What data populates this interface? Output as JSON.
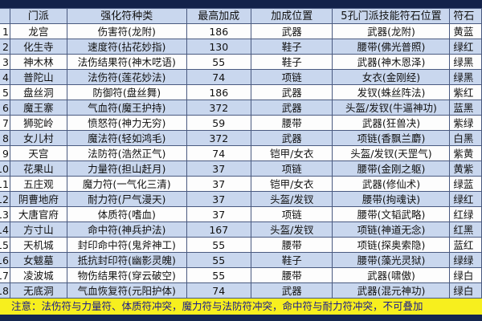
{
  "headers": [
    "",
    "门派",
    "强化符种类",
    "最高加成",
    "加成位置",
    "5孔门派技能符石位置",
    "符石"
  ],
  "rows": [
    [
      "1",
      "龙宫",
      "伤害符(龙附)",
      "186",
      "武器",
      "武器(龙附)",
      "黄蓝"
    ],
    [
      "2",
      "化生寺",
      "速度符(拈花妙指)",
      "130",
      "鞋子",
      "腰带(佛光普照)",
      "绿红"
    ],
    [
      "3",
      "神木林",
      "法伤结果符(神木呓语)",
      "55",
      "鞋子",
      "武器(神木恩泽)",
      "绿黑"
    ],
    [
      "4",
      "普陀山",
      "法伤符(莲花妙法)",
      "74",
      "项链",
      "女衣(金刚经)",
      "绿黑"
    ],
    [
      "5",
      "盘丝洞",
      "防御符(盘丝舞)",
      "186",
      "武器",
      "发钗(蛛丝阵法)",
      "紫红"
    ],
    [
      "6",
      "魔王寨",
      "气血符(魔王护持)",
      "372",
      "武器",
      "头盔/发钗(牛逼神功)",
      "蓝黑"
    ],
    [
      "7",
      "狮驼岭",
      "愤怒符(神力无穷)",
      "59",
      "腰带",
      "武器(狂兽决)",
      "紫绿"
    ],
    [
      "8",
      "女儿村",
      "魔法符(轻如鸿毛)",
      "372",
      "武器",
      "项链(香飘兰麝)",
      "白黑"
    ],
    [
      "9",
      "天宫",
      "法防符(浩然正气)",
      "74",
      "铠甲/女衣",
      "头盔/发钗(天罡气)",
      "紫黄"
    ],
    [
      "10",
      "花果山",
      "力量符(担山赶月)",
      "37",
      "项链",
      "腰带(金刚之躯)",
      "黄紫"
    ],
    [
      "11",
      "五庄观",
      "魔力符(一气化三清)",
      "37",
      "铠甲/女衣",
      "武器(修仙术)",
      "绿蓝"
    ],
    [
      "12",
      "阴曹地府",
      "耐力符(尸气漫天)",
      "37",
      "头盔/发钗",
      "腰带(拘魂诀)",
      "绿红"
    ],
    [
      "13",
      "大唐官府",
      "体质符(嗜血)",
      "37",
      "项链",
      "腰带(文韬武略)",
      "红绿"
    ],
    [
      "14",
      "方寸山",
      "命中符(神兵护法)",
      "167",
      "头盔/发钗",
      "项链(神道无念)",
      "红黑"
    ],
    [
      "15",
      "天机城",
      "封印命中符(鬼斧神工)",
      "55",
      "腰带",
      "项链(探奥索隐)",
      "蓝红"
    ],
    [
      "16",
      "女魃墓",
      "抵抗封印符(幽影灵魄)",
      "55",
      "鞋子",
      "腰带(藻光灵狱)",
      "绿绿"
    ],
    [
      "17",
      "凌波城",
      "物伤结果符(穿云破空)",
      "55",
      "腰带",
      "武器(啸傲)",
      "绿白"
    ],
    [
      "18",
      "无底洞",
      "气血恢复符(元阳护体)",
      "74",
      "武器",
      "武器(混元神功)",
      "绿白"
    ]
  ],
  "note": "注意：法伤符与力量符、体质符冲突，魔力符与法防符冲突，命中符与耐力符冲突，不可叠加",
  "colors": {
    "header_bg": "#c9d7ee",
    "alt_row_bg": "#c9d7ee",
    "note_bg": "#f7ef1e",
    "note_text": "#1a1a8a"
  }
}
